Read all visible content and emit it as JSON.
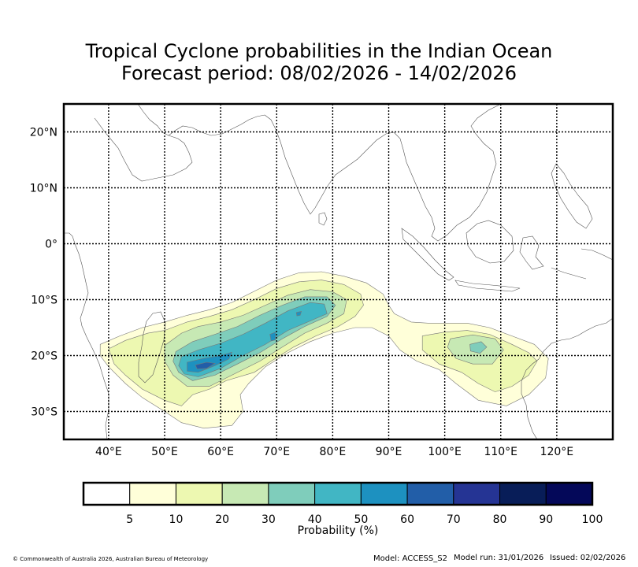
{
  "title": {
    "line1": "Tropical Cyclone probabilities in the Indian Ocean",
    "line2": "Forecast period: 08/02/2026 - 14/02/2026"
  },
  "map": {
    "lon_range": [
      32,
      130
    ],
    "lat_range": [
      -35,
      25
    ],
    "lon_ticks": [
      {
        "value": 40,
        "label": "40°E"
      },
      {
        "value": 50,
        "label": "50°E"
      },
      {
        "value": 60,
        "label": "60°E"
      },
      {
        "value": 70,
        "label": "70°E"
      },
      {
        "value": 80,
        "label": "80°E"
      },
      {
        "value": 90,
        "label": "90°E"
      },
      {
        "value": 100,
        "label": "100°E"
      },
      {
        "value": 110,
        "label": "110°E"
      },
      {
        "value": 120,
        "label": "120°E"
      }
    ],
    "lat_ticks": [
      {
        "value": 20,
        "label": "20°N"
      },
      {
        "value": 10,
        "label": "10°N"
      },
      {
        "value": 0,
        "label": "0°"
      },
      {
        "value": -10,
        "label": "10°S"
      },
      {
        "value": -20,
        "label": "20°S"
      },
      {
        "value": -30,
        "label": "30°S"
      }
    ],
    "grid": true,
    "probability_regions": [
      {
        "level": 5,
        "polygons": [
          [
            [
              38.5,
              -18
            ],
            [
              42,
              -16.5
            ],
            [
              46,
              -15
            ],
            [
              50,
              -14
            ],
            [
              54,
              -12.8
            ],
            [
              58,
              -11.8
            ],
            [
              62,
              -10.5
            ],
            [
              66,
              -8.5
            ],
            [
              70,
              -6.5
            ],
            [
              74,
              -5.2
            ],
            [
              78,
              -5
            ],
            [
              82,
              -5.8
            ],
            [
              86,
              -7
            ],
            [
              89,
              -9
            ],
            [
              90,
              -11
            ],
            [
              91,
              -12.5
            ],
            [
              94,
              -14
            ],
            [
              97,
              -14.2
            ],
            [
              100,
              -14.2
            ],
            [
              104,
              -14.2
            ],
            [
              108,
              -15
            ],
            [
              112,
              -16.5
            ],
            [
              116,
              -18
            ],
            [
              118.5,
              -20.5
            ],
            [
              118,
              -24
            ],
            [
              115,
              -27
            ],
            [
              111,
              -29
            ],
            [
              106,
              -28
            ],
            [
              102,
              -25
            ],
            [
              99,
              -22.5
            ],
            [
              95,
              -21
            ],
            [
              92,
              -19
            ],
            [
              90,
              -16.5
            ],
            [
              87,
              -15
            ],
            [
              84,
              -15
            ],
            [
              80,
              -16
            ],
            [
              76,
              -17.5
            ],
            [
              72,
              -19.5
            ],
            [
              68,
              -22
            ],
            [
              65,
              -25
            ],
            [
              63.5,
              -27
            ],
            [
              64,
              -30
            ],
            [
              62,
              -32.5
            ],
            [
              57,
              -33
            ],
            [
              53,
              -32
            ],
            [
              50,
              -30
            ],
            [
              46,
              -27.5
            ],
            [
              43,
              -25
            ],
            [
              40,
              -22
            ],
            [
              38.5,
              -20
            ]
          ]
        ]
      },
      {
        "level": 10,
        "polygons": [
          [
            [
              40,
              -18.8
            ],
            [
              43,
              -17.3
            ],
            [
              47,
              -16
            ],
            [
              50,
              -15.5
            ],
            [
              54,
              -14
            ],
            [
              58,
              -13
            ],
            [
              62,
              -11.8
            ],
            [
              66,
              -10
            ],
            [
              70,
              -8
            ],
            [
              74,
              -6.8
            ],
            [
              78,
              -6.5
            ],
            [
              82,
              -7.3
            ],
            [
              85,
              -9
            ],
            [
              85.5,
              -11
            ],
            [
              84,
              -13
            ],
            [
              81,
              -14.8
            ],
            [
              77,
              -16.5
            ],
            [
              73,
              -18.5
            ],
            [
              69,
              -21
            ],
            [
              66,
              -23
            ],
            [
              61,
              -24.5
            ],
            [
              58,
              -26
            ],
            [
              55,
              -27
            ],
            [
              53,
              -29
            ],
            [
              50,
              -28
            ],
            [
              46,
              -26
            ],
            [
              43,
              -23.5
            ],
            [
              41,
              -21.5
            ]
          ],
          [
            [
              96,
              -16.5
            ],
            [
              100,
              -15.8
            ],
            [
              104,
              -15.5
            ],
            [
              108,
              -16.2
            ],
            [
              112,
              -18
            ],
            [
              115,
              -19.5
            ],
            [
              116.5,
              -21
            ],
            [
              115,
              -23.5
            ],
            [
              112,
              -25.5
            ],
            [
              109,
              -26.5
            ],
            [
              106,
              -25
            ],
            [
              103,
              -23
            ],
            [
              99,
              -21.5
            ],
            [
              96,
              -19
            ]
          ]
        ]
      },
      {
        "level": 20,
        "polygons": [
          [
            [
              50,
              -18.2
            ],
            [
              53,
              -16
            ],
            [
              56,
              -14.8
            ],
            [
              60,
              -14
            ],
            [
              64,
              -12.8
            ],
            [
              68,
              -11
            ],
            [
              72,
              -9.2
            ],
            [
              76,
              -8.2
            ],
            [
              80,
              -8.6
            ],
            [
              82.5,
              -10
            ],
            [
              82,
              -12.5
            ],
            [
              79,
              -14.2
            ],
            [
              75,
              -16
            ],
            [
              71,
              -18.5
            ],
            [
              67,
              -21
            ],
            [
              62,
              -23.5
            ],
            [
              58,
              -25.5
            ],
            [
              54,
              -25.5
            ],
            [
              51.5,
              -23.5
            ],
            [
              50,
              -21
            ]
          ],
          [
            [
              101,
              -17
            ],
            [
              105,
              -16.3
            ],
            [
              109,
              -17
            ],
            [
              110.5,
              -19
            ],
            [
              108.5,
              -21.5
            ],
            [
              105,
              -21.5
            ],
            [
              102,
              -20.5
            ],
            [
              100.5,
              -18.5
            ]
          ]
        ]
      },
      {
        "level": 30,
        "polygons": [
          [
            [
              52,
              -19.3
            ],
            [
              55,
              -17.5
            ],
            [
              59,
              -16.2
            ],
            [
              63,
              -14.8
            ],
            [
              67,
              -12.8
            ],
            [
              71,
              -11
            ],
            [
              75,
              -9.5
            ],
            [
              79,
              -9.5
            ],
            [
              80.5,
              -11
            ],
            [
              79,
              -13
            ],
            [
              75,
              -14.8
            ],
            [
              71,
              -17
            ],
            [
              67,
              -19.5
            ],
            [
              63,
              -21.5
            ],
            [
              59,
              -23.5
            ],
            [
              55,
              -24.5
            ],
            [
              52.5,
              -23
            ],
            [
              51.5,
              -21
            ]
          ],
          [
            [
              104.5,
              -18
            ],
            [
              106.5,
              -17.5
            ],
            [
              107.5,
              -18.5
            ],
            [
              106.3,
              -19.6
            ],
            [
              104.6,
              -19.2
            ]
          ]
        ]
      },
      {
        "level": 40,
        "polygons": [
          [
            [
              53,
              -20.2
            ],
            [
              56,
              -19
            ],
            [
              60,
              -17.8
            ],
            [
              64,
              -16.2
            ],
            [
              68,
              -14.2
            ],
            [
              72,
              -12
            ],
            [
              76,
              -10.5
            ],
            [
              78.5,
              -10.8
            ],
            [
              79,
              -12.5
            ],
            [
              76,
              -13.8
            ],
            [
              72,
              -15.5
            ],
            [
              68,
              -18
            ],
            [
              64,
              -20
            ],
            [
              60,
              -22.3
            ],
            [
              56,
              -23.8
            ],
            [
              53.5,
              -23.3
            ],
            [
              52.5,
              -21.8
            ]
          ]
        ]
      },
      {
        "level": 50,
        "polygons": [
          [
            [
              54,
              -21.2
            ],
            [
              57,
              -20.5
            ],
            [
              60,
              -20
            ],
            [
              62,
              -19.4
            ],
            [
              61.5,
              -20.6
            ],
            [
              59,
              -21.8
            ],
            [
              56,
              -23
            ],
            [
              54,
              -22.8
            ]
          ],
          [
            [
              68.8,
              -16.2
            ],
            [
              69.8,
              -15.8
            ],
            [
              69.8,
              -17.2
            ],
            [
              69,
              -17.4
            ]
          ],
          [
            [
              73.5,
              -12.3
            ],
            [
              74.4,
              -12.1
            ],
            [
              74.2,
              -12.8
            ],
            [
              73.6,
              -12.9
            ]
          ]
        ]
      },
      {
        "level": 60,
        "polygons": [
          [
            [
              55.5,
              -21.7
            ],
            [
              57.5,
              -21.2
            ],
            [
              59,
              -21.4
            ],
            [
              57.5,
              -22.3
            ],
            [
              55.8,
              -22.4
            ]
          ]
        ]
      }
    ]
  },
  "colorbar": {
    "colors": [
      "#ffffff",
      "#ffffd9",
      "#edf8b1",
      "#c7e9b4",
      "#7fcdbb",
      "#41b6c4",
      "#1d91c0",
      "#225ea8",
      "#253494",
      "#081d58",
      "#040859"
    ],
    "tick_labels": [
      "5",
      "10",
      "20",
      "30",
      "40",
      "50",
      "60",
      "70",
      "80",
      "90",
      "100"
    ],
    "label": "Probability (%)"
  },
  "footer": {
    "copyright": "© Commonwealth of Australia 2026, Australian Bureau of Meteorology",
    "model": "Model: ACCESS_S2",
    "model_run": "Model run: 31/01/2026",
    "issued": "Issued: 02/02/2026"
  }
}
